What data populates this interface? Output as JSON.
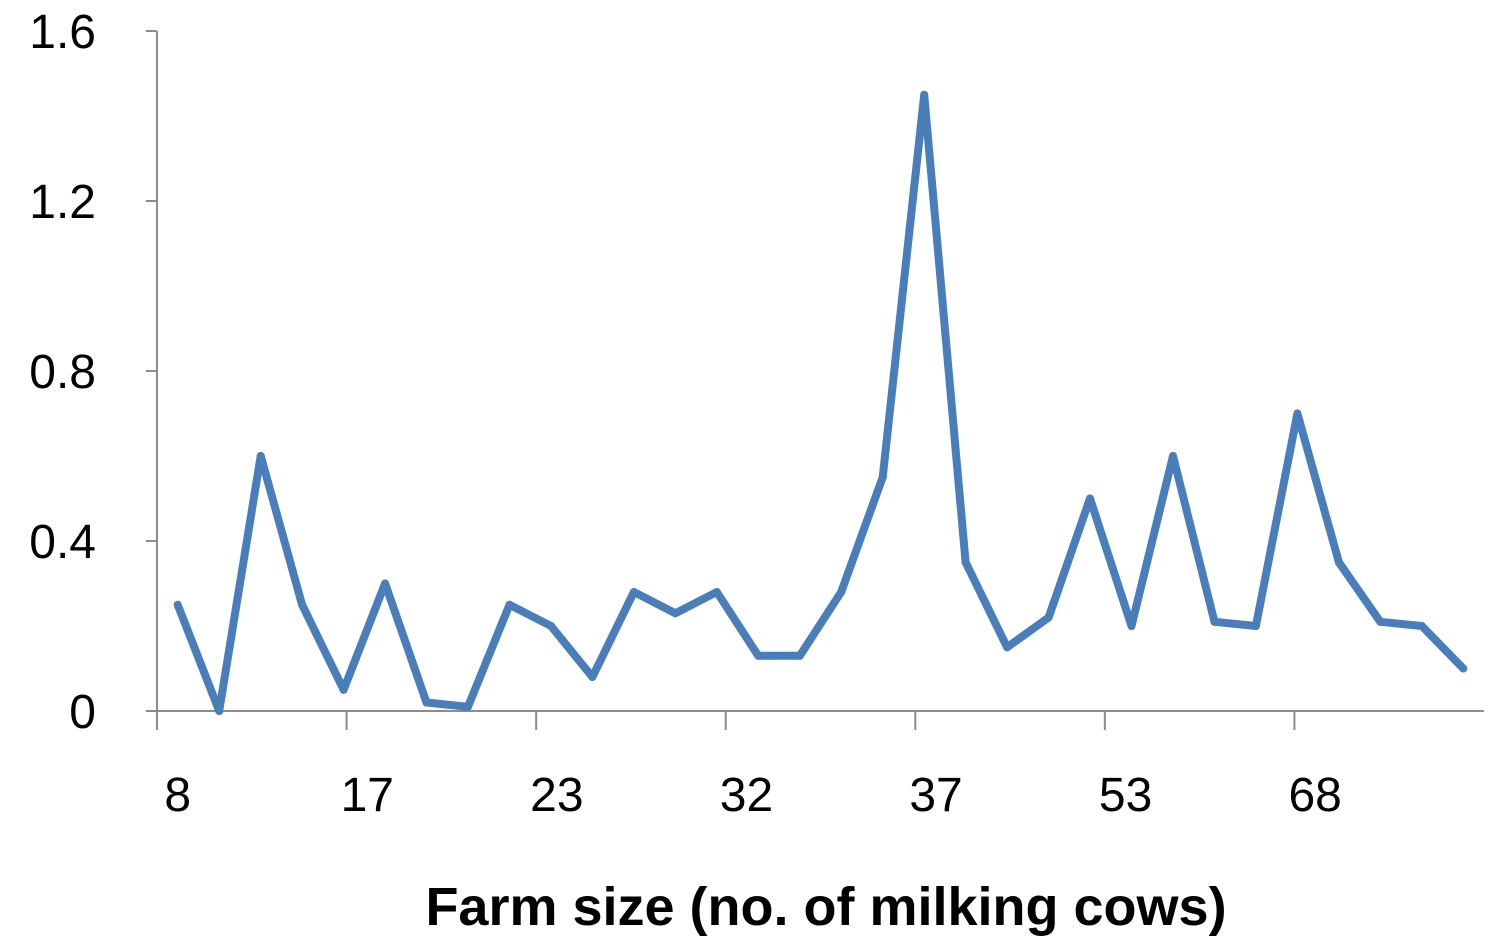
{
  "chart_data": {
    "type": "line",
    "title": "",
    "xlabel": "Farm size (no. of milking cows)",
    "ylabel": "",
    "x_tick_labels": [
      "8",
      "17",
      "23",
      "32",
      "37",
      "53",
      "68"
    ],
    "y_tick_labels": [
      "0",
      "0.4",
      "0.8",
      "1.2",
      "1.6"
    ],
    "y_ticks": [
      0,
      0.4,
      0.8,
      1.2,
      1.6
    ],
    "ylim": [
      0,
      1.6
    ],
    "grid": false,
    "legend": "none",
    "series": [
      {
        "color": "#4a7ebb",
        "values": [
          0.25,
          0.0,
          0.6,
          0.25,
          0.05,
          0.3,
          0.02,
          0.01,
          0.25,
          0.2,
          0.08,
          0.28,
          0.23,
          0.28,
          0.13,
          0.13,
          0.28,
          0.55,
          1.45,
          0.35,
          0.15,
          0.22,
          0.5,
          0.2,
          0.6,
          0.21,
          0.2,
          0.7,
          0.35,
          0.21,
          0.2,
          0.1
        ]
      }
    ]
  }
}
